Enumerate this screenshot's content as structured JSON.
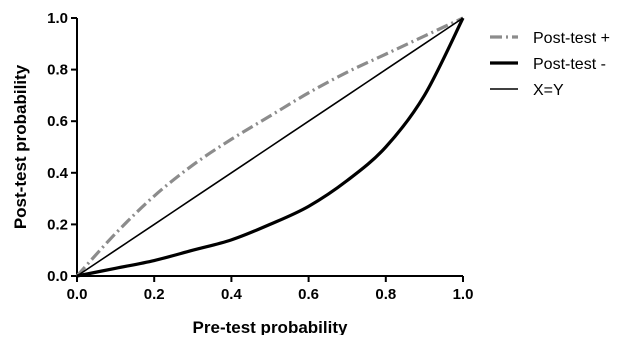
{
  "chart_data": {
    "type": "line",
    "title": "",
    "xlabel": "Pre-test probability",
    "ylabel": "Post-test probability",
    "xlim": [
      0,
      1
    ],
    "ylim": [
      0,
      1
    ],
    "x_ticks": [
      "0.0",
      "0.2",
      "0.4",
      "0.6",
      "0.8",
      "1.0"
    ],
    "y_ticks": [
      "0.0",
      "0.2",
      "0.4",
      "0.6",
      "0.8",
      "1.0"
    ],
    "grid": false,
    "legend_position": "top-right",
    "x": [
      0,
      0.1,
      0.2,
      0.3,
      0.4,
      0.5,
      0.6,
      0.7,
      0.8,
      0.9,
      1.0
    ],
    "series": [
      {
        "name": "Post-test +",
        "style": "dash-dot",
        "color": "#8c8c8c",
        "values": [
          0,
          0.165,
          0.31,
          0.43,
          0.53,
          0.62,
          0.71,
          0.79,
          0.86,
          0.93,
          1.0
        ]
      },
      {
        "name": "Post-test -",
        "style": "solid-thick",
        "color": "#000000",
        "values": [
          0,
          0.03,
          0.06,
          0.1,
          0.14,
          0.2,
          0.27,
          0.37,
          0.5,
          0.7,
          1.0
        ]
      },
      {
        "name": "X=Y",
        "style": "solid-thin",
        "color": "#000000",
        "values": [
          0,
          0.1,
          0.2,
          0.3,
          0.4,
          0.5,
          0.6,
          0.7,
          0.8,
          0.9,
          1.0
        ]
      }
    ]
  }
}
